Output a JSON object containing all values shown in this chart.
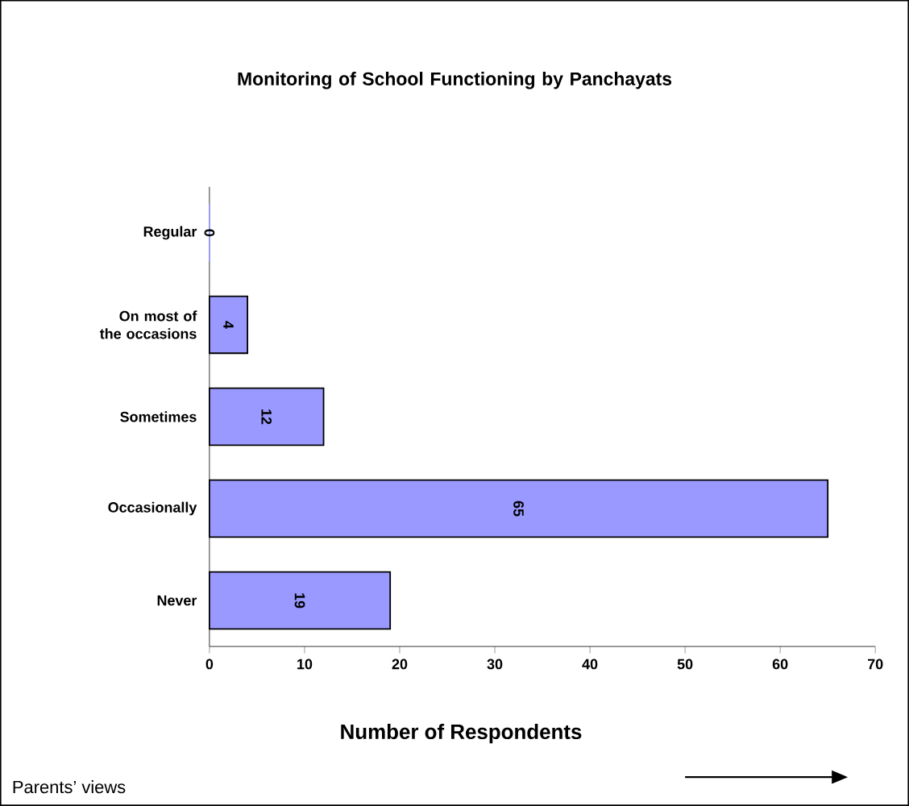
{
  "chart_data": {
    "type": "bar",
    "orientation": "horizontal",
    "title": "Monitoring of School Functioning by Panchayats",
    "xlabel": "Number of Respondents",
    "categories": [
      "Regular",
      "On most of the occasions",
      "Sometimes",
      "Occasionally",
      "Never"
    ],
    "values": [
      0,
      4,
      12,
      65,
      19
    ],
    "color": "#9999ff",
    "xlim": [
      0,
      70
    ],
    "xticks": [
      0,
      10,
      20,
      30,
      40,
      50,
      60,
      70
    ],
    "data_labels": true,
    "annotations": [
      "Parents’ views"
    ]
  }
}
